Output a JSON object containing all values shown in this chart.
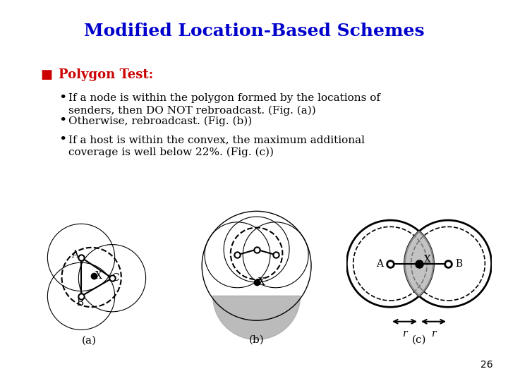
{
  "title": "Modified Location-Based Schemes",
  "title_color": "#0000CC",
  "title_fontsize": 18,
  "bullet_color": "#CC0000",
  "bullet_header": "Polygon Test:",
  "bullets": [
    "If a node is within the polygon formed by the locations of\nsenders, then DO NOT rebroadcast. (Fig. (a))",
    "Otherwise, rebroadcast. (Fig. (b))",
    "If a host is within the convex, the maximum additional\ncoverage is well below 22%. (Fig. (c))"
  ],
  "fig_label_a": "(a)",
  "fig_label_b": "(b)",
  "fig_label_c": "(c)",
  "page_number": "26",
  "bg_color": "#FFFFFF",
  "gray_fill": "#AAAAAA"
}
